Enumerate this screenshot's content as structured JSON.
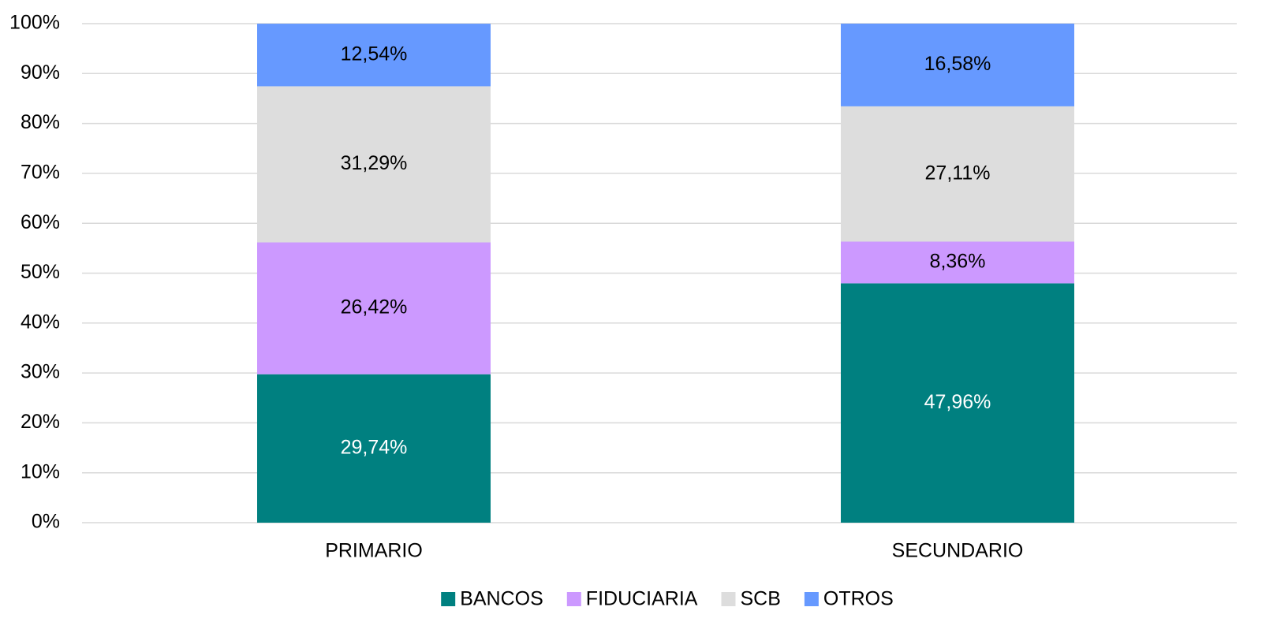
{
  "chart_data": {
    "type": "stacked_bar",
    "categories": [
      "PRIMARIO",
      "SECUNDARIO"
    ],
    "series": [
      {
        "name": "BANCOS",
        "color": "#008080",
        "values": [
          29.74,
          47.96
        ],
        "value_labels": [
          "29,74%",
          "47,96%"
        ]
      },
      {
        "name": "FIDUCIARIA",
        "color": "#cc99ff",
        "values": [
          26.42,
          8.36
        ],
        "value_labels": [
          "26,42%",
          "8,36%"
        ]
      },
      {
        "name": "SCB",
        "color": "#dddddd",
        "values": [
          31.29,
          27.11
        ],
        "value_labels": [
          "31,29%",
          "27,11%"
        ]
      },
      {
        "name": "OTROS",
        "color": "#6699ff",
        "values": [
          12.54,
          16.58
        ],
        "value_labels": [
          "12,54%",
          "16,58%"
        ]
      }
    ],
    "ylim": [
      0,
      100
    ],
    "yticks": [
      {
        "value": 0,
        "label": "0%"
      },
      {
        "value": 10,
        "label": "10%"
      },
      {
        "value": 20,
        "label": "20%"
      },
      {
        "value": 30,
        "label": "30%"
      },
      {
        "value": 40,
        "label": "40%"
      },
      {
        "value": 50,
        "label": "50%"
      },
      {
        "value": 60,
        "label": "60%"
      },
      {
        "value": 70,
        "label": "70%"
      },
      {
        "value": 80,
        "label": "80%"
      },
      {
        "value": 90,
        "label": "90%"
      },
      {
        "value": 100,
        "label": "100%"
      }
    ],
    "grid": true,
    "legend": "bottom"
  }
}
